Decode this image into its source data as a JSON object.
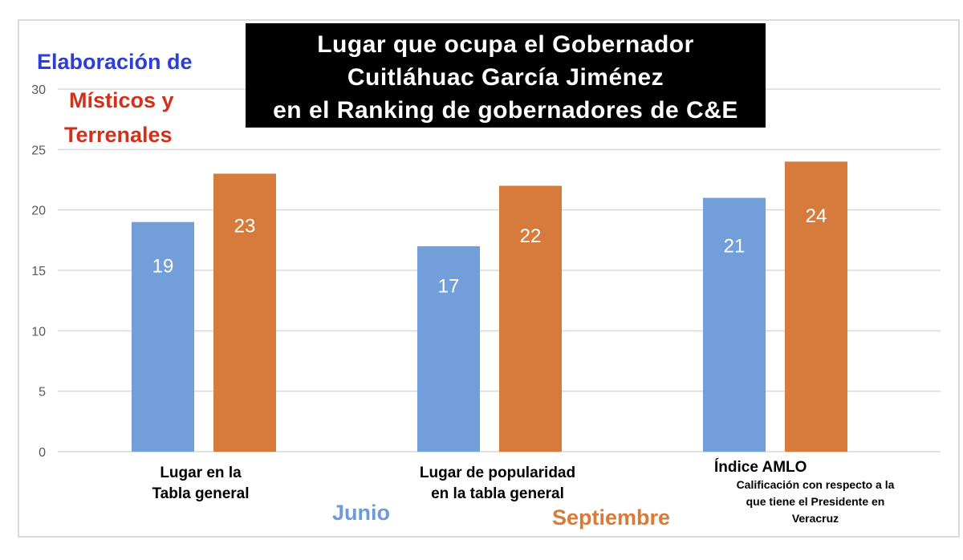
{
  "title": {
    "line1": "Lugar que ocupa el Gobernador",
    "line2": "Cuitláhuac García Jiménez",
    "line3": "en el Ranking de gobernadores de C&E"
  },
  "credit": {
    "line1": "Elaboración de",
    "line2": "Místicos y",
    "line3": "Terrenales"
  },
  "categories_display": {
    "cat1": "Lugar en la\nTabla general",
    "cat2": "Lugar de popularidad\nen la tabla general",
    "cat3": "Índice AMLO",
    "cat3_sub": "Calificación con respecto a la\nque tiene el Presidente en\nVeracruz"
  },
  "legend": {
    "series1": "Junio",
    "series2": "Septiembre"
  },
  "colors": {
    "series1": "#729ed9",
    "series2": "#d77b3c",
    "grid": "#d9d9d9",
    "axis_text": "#595959"
  },
  "chart_data": {
    "type": "bar",
    "categories": [
      "Lugar en la Tabla general",
      "Lugar de popularidad en la tabla general",
      "Índice AMLO"
    ],
    "series": [
      {
        "name": "Junio",
        "values": [
          19,
          17,
          21
        ]
      },
      {
        "name": "Septiembre",
        "values": [
          23,
          22,
          24
        ]
      }
    ],
    "ylim": [
      0,
      30
    ],
    "yticks": [
      0,
      5,
      10,
      15,
      20,
      25,
      30
    ],
    "grid": true,
    "data_labels": true,
    "legend_position": "bottom"
  }
}
